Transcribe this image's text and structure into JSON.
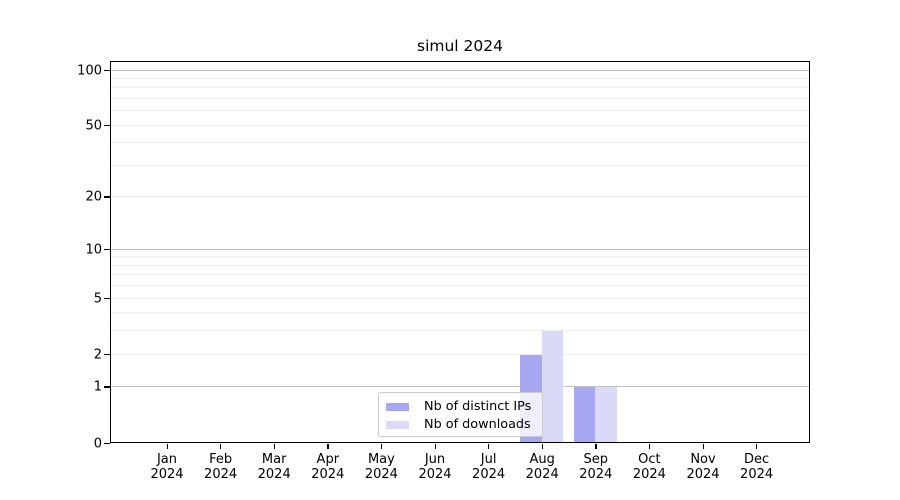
{
  "title": "simul 2024",
  "chart_data": {
    "type": "bar",
    "title": "simul 2024",
    "categories": [
      "Jan 2024",
      "Feb 2024",
      "Mar 2024",
      "Apr 2024",
      "May 2024",
      "Jun 2024",
      "Jul 2024",
      "Aug 2024",
      "Sep 2024",
      "Oct 2024",
      "Nov 2024",
      "Dec 2024"
    ],
    "series": [
      {
        "name": "Nb of distinct IPs",
        "color": "#a8a8f2",
        "values": [
          0,
          0,
          0,
          0,
          0,
          0,
          0,
          2,
          1,
          0,
          0,
          0
        ]
      },
      {
        "name": "Nb of downloads",
        "color": "#dadaf8",
        "values": [
          0,
          0,
          0,
          0,
          0,
          0,
          0,
          3,
          1,
          0,
          0,
          0
        ]
      }
    ],
    "xlabel": "",
    "ylabel": "",
    "yscale": "log1p",
    "ylim": [
      0,
      112
    ],
    "y_tick_values": [
      0,
      1,
      2,
      5,
      10,
      20,
      50,
      100
    ],
    "y_tick_labels": [
      "0",
      "1",
      "2",
      "5",
      "10",
      "20",
      "50",
      "100"
    ],
    "grid": "horizontal",
    "legend": {
      "position": "lower center"
    },
    "colors": {
      "grid_major": "#c0c0c0",
      "grid_minor": "#ececec",
      "axis": "#000000",
      "background": "#ffffff"
    }
  }
}
